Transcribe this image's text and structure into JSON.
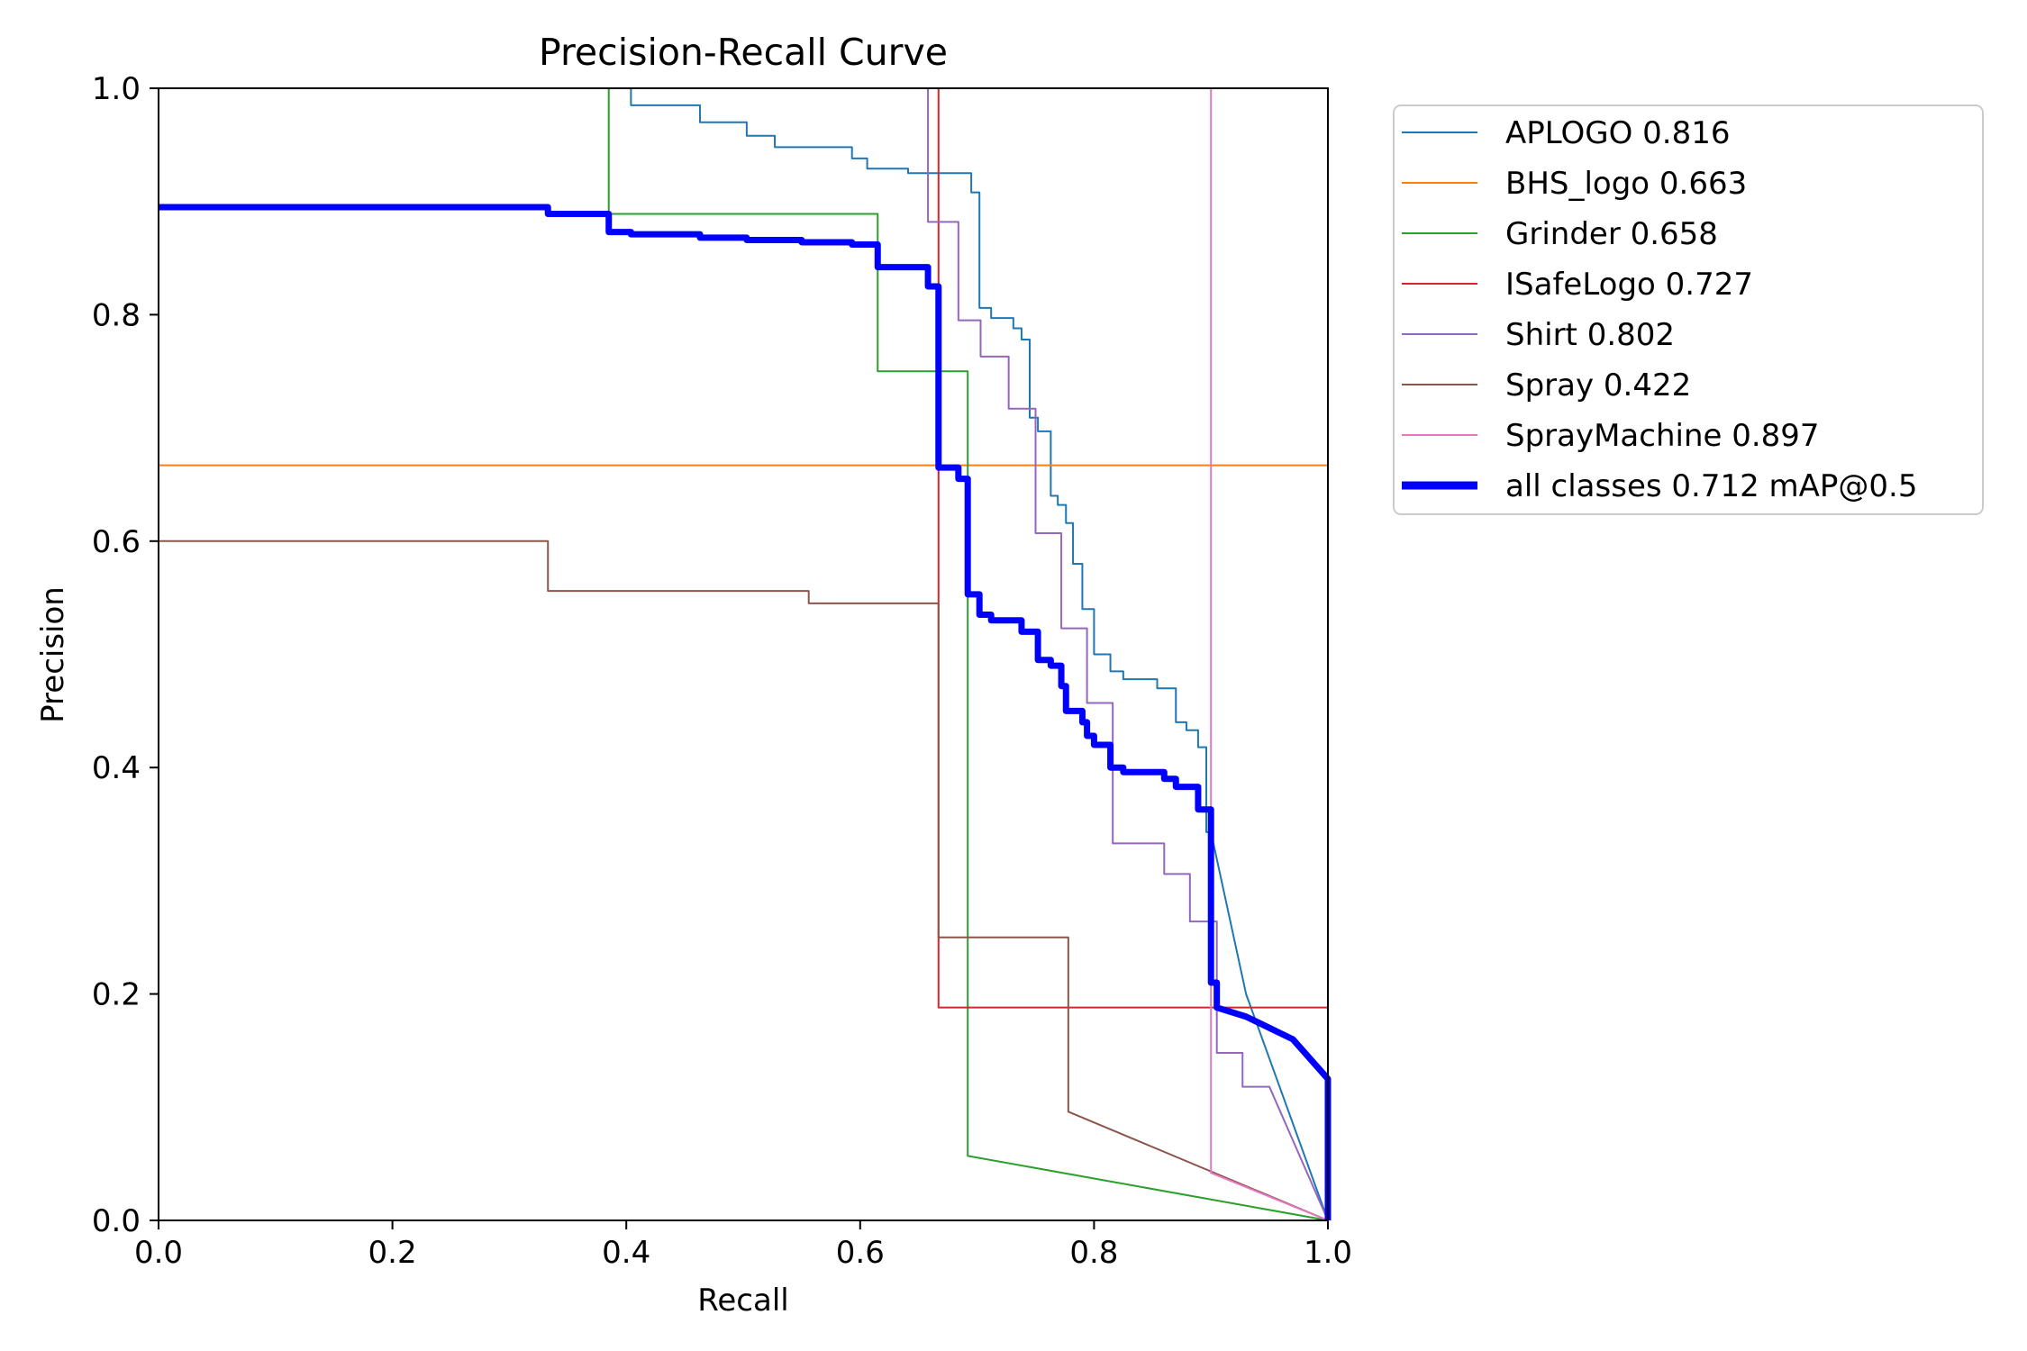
{
  "chart_data": {
    "type": "line",
    "title": "Precision-Recall Curve",
    "xlabel": "Recall",
    "ylabel": "Precision",
    "xlim": [
      0,
      1
    ],
    "ylim": [
      0,
      1
    ],
    "x_ticks": [
      "0.0",
      "0.2",
      "0.4",
      "0.6",
      "0.8",
      "1.0"
    ],
    "y_ticks": [
      "0.0",
      "0.2",
      "0.4",
      "0.6",
      "0.8",
      "1.0"
    ],
    "grid": false,
    "legend_position": "outside-top-right",
    "series": [
      {
        "name": "APLOGO 0.816",
        "color": "#1f77b4",
        "line_width": "thin",
        "points": [
          [
            0.404,
            1.0
          ],
          [
            0.404,
            0.985
          ],
          [
            0.463,
            0.985
          ],
          [
            0.463,
            0.97
          ],
          [
            0.503,
            0.97
          ],
          [
            0.503,
            0.958
          ],
          [
            0.527,
            0.958
          ],
          [
            0.527,
            0.948
          ],
          [
            0.593,
            0.948
          ],
          [
            0.593,
            0.938
          ],
          [
            0.606,
            0.938
          ],
          [
            0.606,
            0.929
          ],
          [
            0.641,
            0.929
          ],
          [
            0.641,
            0.925
          ],
          [
            0.695,
            0.925
          ],
          [
            0.695,
            0.908
          ],
          [
            0.702,
            0.908
          ],
          [
            0.702,
            0.806
          ],
          [
            0.712,
            0.806
          ],
          [
            0.712,
            0.797
          ],
          [
            0.731,
            0.797
          ],
          [
            0.731,
            0.788
          ],
          [
            0.738,
            0.788
          ],
          [
            0.738,
            0.778
          ],
          [
            0.745,
            0.778
          ],
          [
            0.745,
            0.709
          ],
          [
            0.752,
            0.709
          ],
          [
            0.752,
            0.697
          ],
          [
            0.763,
            0.697
          ],
          [
            0.763,
            0.64
          ],
          [
            0.769,
            0.64
          ],
          [
            0.769,
            0.632
          ],
          [
            0.776,
            0.632
          ],
          [
            0.776,
            0.616
          ],
          [
            0.782,
            0.616
          ],
          [
            0.782,
            0.58
          ],
          [
            0.79,
            0.58
          ],
          [
            0.79,
            0.54
          ],
          [
            0.8,
            0.54
          ],
          [
            0.8,
            0.5
          ],
          [
            0.814,
            0.5
          ],
          [
            0.814,
            0.485
          ],
          [
            0.825,
            0.485
          ],
          [
            0.825,
            0.478
          ],
          [
            0.854,
            0.478
          ],
          [
            0.854,
            0.47
          ],
          [
            0.87,
            0.47
          ],
          [
            0.87,
            0.44
          ],
          [
            0.879,
            0.44
          ],
          [
            0.879,
            0.433
          ],
          [
            0.889,
            0.433
          ],
          [
            0.889,
            0.418
          ],
          [
            0.896,
            0.418
          ],
          [
            0.896,
            0.343
          ],
          [
            0.9,
            0.343
          ],
          [
            0.93,
            0.2
          ],
          [
            1.0,
            0.0
          ]
        ]
      },
      {
        "name": "BHS_logo 0.663",
        "color": "#ff7f0e",
        "line_width": "thin",
        "points": [
          [
            0.0,
            0.667
          ],
          [
            1.0,
            0.667
          ],
          [
            1.0,
            0.0
          ]
        ]
      },
      {
        "name": "Grinder 0.658",
        "color": "#2ca02c",
        "line_width": "thin",
        "points": [
          [
            0.385,
            1.0
          ],
          [
            0.385,
            0.889
          ],
          [
            0.615,
            0.889
          ],
          [
            0.615,
            0.75
          ],
          [
            0.692,
            0.75
          ],
          [
            0.692,
            0.057
          ],
          [
            1.0,
            0.0
          ]
        ]
      },
      {
        "name": "ISafeLogo 0.727",
        "color": "#d62728",
        "line_width": "thin",
        "points": [
          [
            0.667,
            1.0
          ],
          [
            0.667,
            0.188
          ],
          [
            1.0,
            0.188
          ],
          [
            1.0,
            0.0
          ]
        ]
      },
      {
        "name": "Shirt 0.802",
        "color": "#9467bd",
        "line_width": "thin",
        "points": [
          [
            0.658,
            1.0
          ],
          [
            0.658,
            0.882
          ],
          [
            0.684,
            0.882
          ],
          [
            0.684,
            0.795
          ],
          [
            0.703,
            0.795
          ],
          [
            0.703,
            0.763
          ],
          [
            0.727,
            0.763
          ],
          [
            0.727,
            0.717
          ],
          [
            0.75,
            0.717
          ],
          [
            0.75,
            0.607
          ],
          [
            0.772,
            0.607
          ],
          [
            0.772,
            0.523
          ],
          [
            0.794,
            0.523
          ],
          [
            0.794,
            0.457
          ],
          [
            0.816,
            0.457
          ],
          [
            0.816,
            0.333
          ],
          [
            0.86,
            0.333
          ],
          [
            0.86,
            0.306
          ],
          [
            0.882,
            0.306
          ],
          [
            0.882,
            0.264
          ],
          [
            0.905,
            0.264
          ],
          [
            0.905,
            0.148
          ],
          [
            0.927,
            0.148
          ],
          [
            0.927,
            0.118
          ],
          [
            0.95,
            0.118
          ],
          [
            1.0,
            0.0
          ]
        ]
      },
      {
        "name": "Spray 0.422",
        "color": "#8c564b",
        "line_width": "thin",
        "points": [
          [
            0.0,
            0.6
          ],
          [
            0.333,
            0.6
          ],
          [
            0.333,
            0.556
          ],
          [
            0.556,
            0.556
          ],
          [
            0.556,
            0.545
          ],
          [
            0.667,
            0.545
          ],
          [
            0.667,
            0.25
          ],
          [
            0.778,
            0.25
          ],
          [
            0.778,
            0.096
          ],
          [
            1.0,
            0.0
          ]
        ]
      },
      {
        "name": "SprayMachine 0.897",
        "color": "#e377c2",
        "line_width": "thin",
        "points": [
          [
            0.9,
            1.0
          ],
          [
            0.9,
            0.042
          ],
          [
            1.0,
            0.0
          ]
        ]
      },
      {
        "name": "all classes 0.712 mAP@0.5",
        "color": "#0000ff",
        "line_width": "thick",
        "points": [
          [
            0.0,
            0.895
          ],
          [
            0.333,
            0.895
          ],
          [
            0.333,
            0.889
          ],
          [
            0.385,
            0.889
          ],
          [
            0.385,
            0.873
          ],
          [
            0.404,
            0.873
          ],
          [
            0.404,
            0.871
          ],
          [
            0.463,
            0.871
          ],
          [
            0.463,
            0.868
          ],
          [
            0.503,
            0.868
          ],
          [
            0.503,
            0.866
          ],
          [
            0.55,
            0.866
          ],
          [
            0.55,
            0.864
          ],
          [
            0.593,
            0.864
          ],
          [
            0.593,
            0.862
          ],
          [
            0.615,
            0.862
          ],
          [
            0.615,
            0.842
          ],
          [
            0.658,
            0.842
          ],
          [
            0.658,
            0.825
          ],
          [
            0.667,
            0.825
          ],
          [
            0.667,
            0.665
          ],
          [
            0.684,
            0.665
          ],
          [
            0.684,
            0.655
          ],
          [
            0.692,
            0.655
          ],
          [
            0.692,
            0.553
          ],
          [
            0.702,
            0.553
          ],
          [
            0.702,
            0.535
          ],
          [
            0.712,
            0.535
          ],
          [
            0.712,
            0.53
          ],
          [
            0.738,
            0.53
          ],
          [
            0.738,
            0.52
          ],
          [
            0.752,
            0.52
          ],
          [
            0.752,
            0.495
          ],
          [
            0.763,
            0.495
          ],
          [
            0.763,
            0.49
          ],
          [
            0.772,
            0.49
          ],
          [
            0.772,
            0.472
          ],
          [
            0.776,
            0.472
          ],
          [
            0.776,
            0.45
          ],
          [
            0.79,
            0.45
          ],
          [
            0.79,
            0.44
          ],
          [
            0.794,
            0.44
          ],
          [
            0.794,
            0.428
          ],
          [
            0.8,
            0.428
          ],
          [
            0.8,
            0.42
          ],
          [
            0.814,
            0.42
          ],
          [
            0.814,
            0.4
          ],
          [
            0.825,
            0.4
          ],
          [
            0.825,
            0.396
          ],
          [
            0.86,
            0.396
          ],
          [
            0.86,
            0.39
          ],
          [
            0.87,
            0.39
          ],
          [
            0.87,
            0.383
          ],
          [
            0.889,
            0.383
          ],
          [
            0.889,
            0.363
          ],
          [
            0.9,
            0.363
          ],
          [
            0.9,
            0.21
          ],
          [
            0.905,
            0.21
          ],
          [
            0.905,
            0.188
          ],
          [
            0.93,
            0.18
          ],
          [
            0.95,
            0.17
          ],
          [
            0.97,
            0.16
          ],
          [
            1.0,
            0.125
          ],
          [
            1.0,
            0.0
          ]
        ]
      }
    ]
  }
}
